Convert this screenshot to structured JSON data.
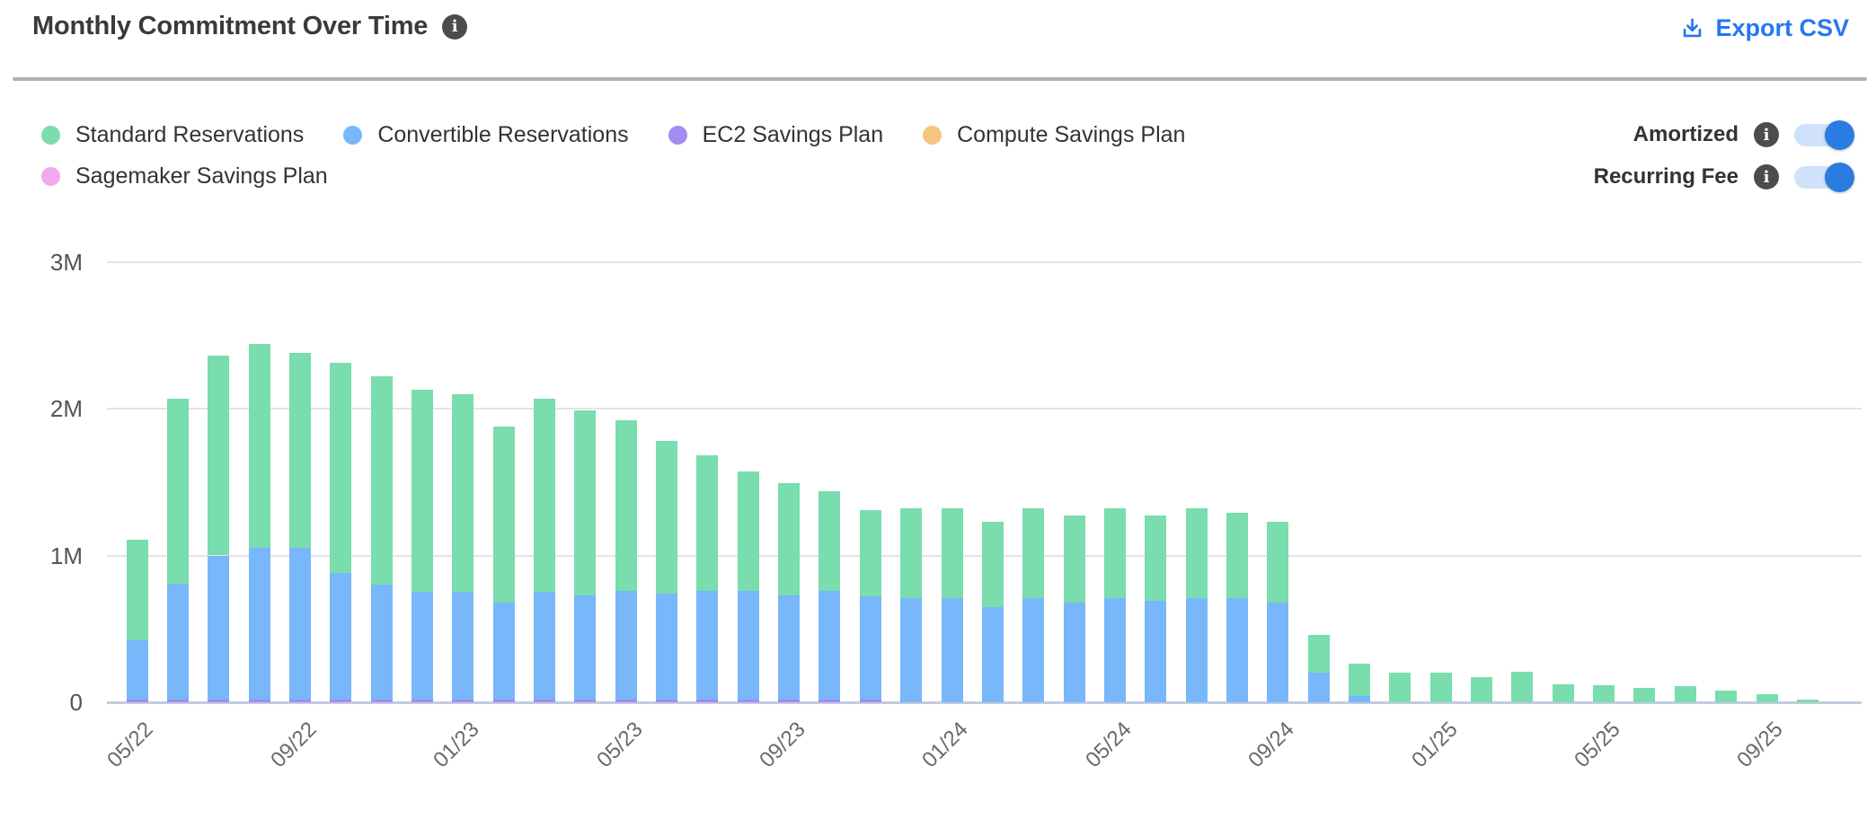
{
  "header": {
    "title": "Monthly Commitment Over Time",
    "export_label": "Export CSV"
  },
  "controls": {
    "toggles": [
      {
        "label": "Amortized",
        "state": "on"
      },
      {
        "label": "Recurring Fee",
        "state": "on"
      }
    ]
  },
  "colors": {
    "accent_blue": "#2677f0",
    "toggle_track": "#cfe2fa",
    "toggle_knob": "#2b7ce0",
    "info_badge": "#4c4c4f",
    "gridline": "#e4e4e8",
    "baseline": "#c3cce0"
  },
  "chart_data": {
    "type": "bar",
    "stacked": true,
    "title": "Monthly Commitment Over Time",
    "xlabel": "",
    "ylabel": "",
    "unit": "M (millions, currency)",
    "grid": true,
    "legend_position": "top-left",
    "ylim": [
      0,
      3.35
    ],
    "yticks": [
      {
        "label": "0",
        "value": 0
      },
      {
        "label": "1M",
        "value": 1
      },
      {
        "label": "2M",
        "value": 2
      },
      {
        "label": "3M",
        "value": 3
      }
    ],
    "x": [
      "05/22",
      "06/22",
      "07/22",
      "08/22",
      "09/22",
      "10/22",
      "11/22",
      "12/22",
      "01/23",
      "02/23",
      "03/23",
      "04/23",
      "05/23",
      "06/23",
      "07/23",
      "08/23",
      "09/23",
      "10/23",
      "11/23",
      "12/23",
      "01/24",
      "02/24",
      "03/24",
      "04/24",
      "05/24",
      "06/24",
      "07/24",
      "08/24",
      "09/24",
      "10/24",
      "11/24",
      "12/24",
      "01/25",
      "02/25",
      "03/25",
      "04/25",
      "05/25",
      "06/25",
      "07/25",
      "08/25",
      "09/25",
      "10/25"
    ],
    "x_tick_labels_shown": [
      "05/22",
      "09/22",
      "01/23",
      "05/23",
      "09/23",
      "01/24",
      "05/24",
      "09/24",
      "01/25",
      "05/25",
      "09/25"
    ],
    "x_tick_every": 4,
    "stack_order_bottom_to_top": [
      "Sagemaker Savings Plan",
      "Compute Savings Plan",
      "EC2 Savings Plan",
      "Convertible Reservations",
      "Standard Reservations"
    ],
    "series": [
      {
        "name": "Standard Reservations",
        "color": "#79DDAD",
        "values": [
          0.69,
          1.26,
          1.36,
          1.39,
          1.33,
          1.43,
          1.42,
          1.38,
          1.35,
          1.2,
          1.32,
          1.26,
          1.16,
          1.04,
          0.92,
          0.81,
          0.76,
          0.68,
          0.59,
          0.61,
          0.61,
          0.58,
          0.61,
          0.59,
          0.61,
          0.58,
          0.61,
          0.58,
          0.55,
          0.26,
          0.22,
          0.2,
          0.2,
          0.17,
          0.21,
          0.12,
          0.115,
          0.1,
          0.11,
          0.08,
          0.055,
          0.02
        ]
      },
      {
        "name": "Convertible Reservations",
        "color": "#78B7F9",
        "values": [
          0.4,
          0.79,
          0.98,
          1.03,
          1.03,
          0.86,
          0.78,
          0.73,
          0.73,
          0.66,
          0.73,
          0.71,
          0.74,
          0.72,
          0.74,
          0.74,
          0.71,
          0.74,
          0.7,
          0.71,
          0.71,
          0.65,
          0.71,
          0.68,
          0.71,
          0.69,
          0.71,
          0.71,
          0.68,
          0.2,
          0.04,
          0,
          0,
          0,
          0,
          0,
          0,
          0,
          0,
          0,
          0,
          0
        ]
      },
      {
        "name": "EC2 Savings Plan",
        "color": "#A48BF2",
        "values": [
          0.02,
          0.02,
          0.02,
          0.02,
          0.02,
          0.02,
          0.02,
          0.02,
          0.02,
          0.02,
          0.02,
          0.02,
          0.02,
          0.02,
          0.02,
          0.02,
          0.02,
          0.02,
          0.02,
          0,
          0,
          0,
          0,
          0,
          0,
          0,
          0,
          0,
          0,
          0,
          0,
          0,
          0,
          0,
          0,
          0,
          0,
          0,
          0,
          0,
          0,
          0
        ]
      },
      {
        "name": "Compute Savings Plan",
        "color": "#F6C57D",
        "values": [
          0,
          0,
          0,
          0,
          0,
          0,
          0,
          0,
          0,
          0,
          0,
          0,
          0,
          0,
          0,
          0,
          0,
          0,
          0,
          0,
          0,
          0,
          0,
          0,
          0,
          0,
          0,
          0,
          0,
          0,
          0,
          0,
          0,
          0,
          0,
          0,
          0,
          0,
          0,
          0,
          0,
          0
        ]
      },
      {
        "name": "Sagemaker Savings Plan",
        "color": "#F0A9EC",
        "values": [
          0,
          0,
          0,
          0,
          0,
          0,
          0,
          0,
          0,
          0,
          0,
          0,
          0,
          0,
          0,
          0,
          0,
          0,
          0,
          0,
          0,
          0,
          0,
          0,
          0,
          0,
          0,
          0,
          0,
          0,
          0,
          0,
          0,
          0,
          0,
          0,
          0,
          0,
          0,
          0,
          0,
          0
        ]
      }
    ]
  }
}
